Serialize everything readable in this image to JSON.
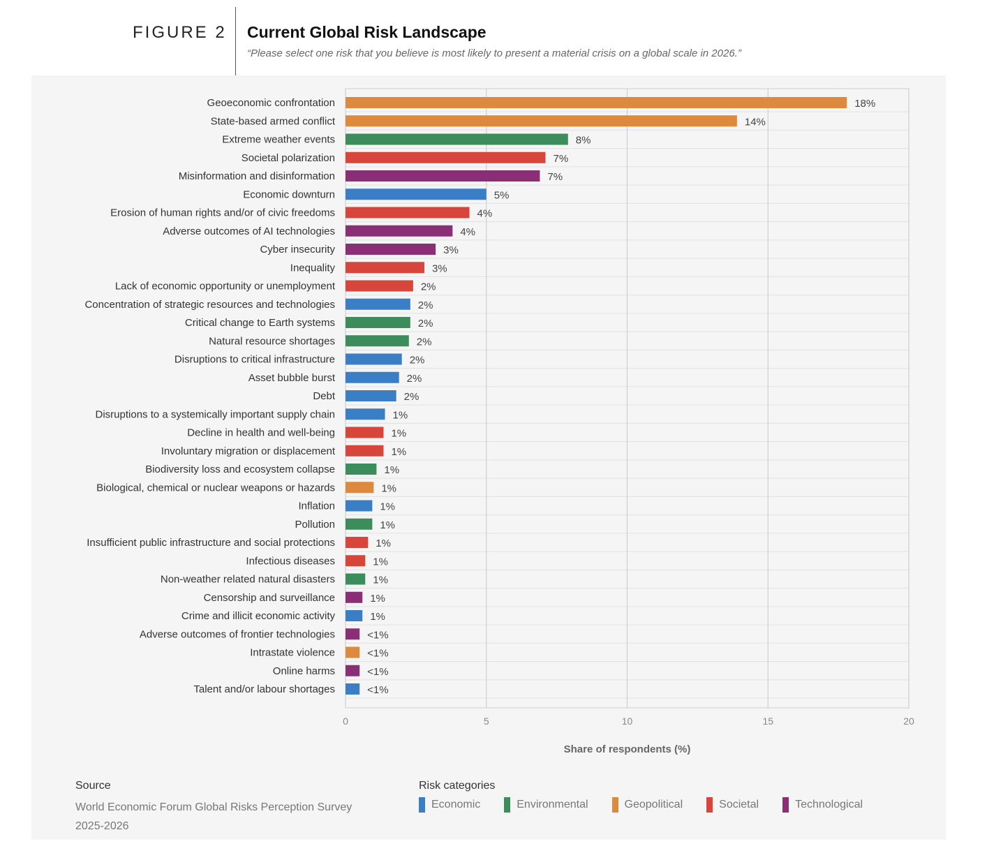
{
  "figure_label": "FIGURE 2",
  "title": "Current Global Risk Landscape",
  "subtitle": "“Please select one risk that you believe is most likely to present a material crisis on a global scale in 2026.”",
  "source": {
    "label": "Source",
    "text": "World Economic Forum Global Risks Perception Survey 2025-2026"
  },
  "legend": {
    "title": "Risk categories",
    "items": [
      {
        "name": "Economic",
        "color": "#3a7ec6"
      },
      {
        "name": "Environmental",
        "color": "#3d8c5c"
      },
      {
        "name": "Geopolitical",
        "color": "#dd8a3e"
      },
      {
        "name": "Societal",
        "color": "#d8453a"
      },
      {
        "name": "Technological",
        "color": "#8a2e76"
      }
    ]
  },
  "chart_data": {
    "type": "bar",
    "orientation": "horizontal",
    "xlabel": "Share of respondents (%)",
    "xlim": [
      0,
      20
    ],
    "xticks": [
      0,
      5,
      10,
      15,
      20
    ],
    "grid": true,
    "categories": [
      "Geoeconomic confrontation",
      "State-based armed conflict",
      "Extreme weather events",
      "Societal polarization",
      "Misinformation and disinformation",
      "Economic downturn",
      "Erosion of human rights and/or of civic freedoms",
      "Adverse outcomes of AI technologies",
      "Cyber insecurity",
      "Inequality",
      "Lack of economic opportunity or unemployment",
      "Concentration of strategic resources and technologies",
      "Critical change to Earth systems",
      "Natural resource shortages",
      "Disruptions to critical infrastructure",
      "Asset bubble burst",
      "Debt",
      "Disruptions to a systemically important supply chain",
      "Decline in health and well-being",
      "Involuntary migration or displacement",
      "Biodiversity loss and ecosystem collapse",
      "Biological, chemical or nuclear weapons or hazards",
      "Inflation",
      "Pollution",
      "Insufficient public infrastructure and social protections",
      "Infectious diseases",
      "Non-weather related natural disasters",
      "Censorship and surveillance",
      "Crime and illicit economic activity",
      "Adverse outcomes of frontier technologies",
      "Intrastate violence",
      "Online harms",
      "Talent and/or labour shortages"
    ],
    "values": [
      17.8,
      13.9,
      7.9,
      7.1,
      6.9,
      5.0,
      4.4,
      3.8,
      3.2,
      2.8,
      2.4,
      2.3,
      2.3,
      2.25,
      2.0,
      1.9,
      1.8,
      1.4,
      1.35,
      1.35,
      1.1,
      1.0,
      0.95,
      0.95,
      0.8,
      0.7,
      0.7,
      0.6,
      0.6,
      0.5,
      0.5,
      0.5,
      0.5
    ],
    "labels": [
      "18%",
      "14%",
      "8%",
      "7%",
      "7%",
      "5%",
      "4%",
      "4%",
      "3%",
      "3%",
      "2%",
      "2%",
      "2%",
      "2%",
      "2%",
      "2%",
      "2%",
      "1%",
      "1%",
      "1%",
      "1%",
      "1%",
      "1%",
      "1%",
      "1%",
      "1%",
      "1%",
      "1%",
      "1%",
      "<1%",
      "<1%",
      "<1%",
      "<1%"
    ],
    "risk_categories": [
      "Geopolitical",
      "Geopolitical",
      "Environmental",
      "Societal",
      "Technological",
      "Economic",
      "Societal",
      "Technological",
      "Technological",
      "Societal",
      "Societal",
      "Economic",
      "Environmental",
      "Environmental",
      "Economic",
      "Economic",
      "Economic",
      "Economic",
      "Societal",
      "Societal",
      "Environmental",
      "Geopolitical",
      "Economic",
      "Environmental",
      "Societal",
      "Societal",
      "Environmental",
      "Technological",
      "Economic",
      "Technological",
      "Geopolitical",
      "Technological",
      "Economic"
    ]
  }
}
